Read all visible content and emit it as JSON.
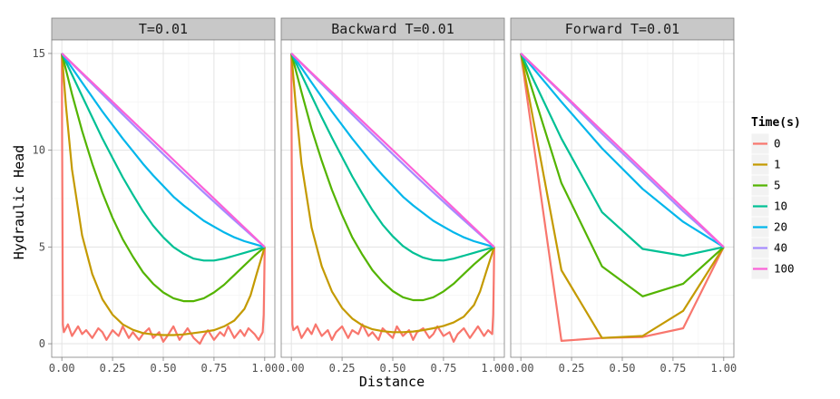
{
  "chart_data": {
    "type": "line",
    "facets": [
      "T=0.01",
      "Backward T=0.01",
      "Forward T=0.01"
    ],
    "xlabel": "Distance",
    "ylabel": "Hydraulic Head",
    "xlim": [
      -0.05,
      1.05
    ],
    "ylim": [
      -0.7,
      15.7
    ],
    "x_ticks": [
      0,
      0.25,
      0.5,
      0.75,
      1
    ],
    "x_tick_labels": [
      "0.00",
      "0.25",
      "0.50",
      "0.75",
      "1.00"
    ],
    "y_ticks": [
      0,
      5,
      10,
      15
    ],
    "y_tick_labels": [
      "0",
      "5",
      "10",
      "15"
    ],
    "grid": true,
    "legend": {
      "title": "Time(s)",
      "position": "right",
      "entries": [
        "0",
        "1",
        "5",
        "10",
        "20",
        "40",
        "100"
      ],
      "colors": [
        "#F8766D",
        "#C49A00",
        "#53B400",
        "#00C094",
        "#00B6EB",
        "#A58AFF",
        "#FB61D7"
      ]
    },
    "panels": [
      {
        "facet": "T=0.01",
        "series": [
          {
            "time": "0",
            "x": [
              0,
              0.001,
              0.003,
              0.005,
              0.01,
              0.03,
              0.05,
              0.08,
              0.1,
              0.12,
              0.15,
              0.18,
              0.2,
              0.22,
              0.25,
              0.28,
              0.3,
              0.33,
              0.35,
              0.38,
              0.4,
              0.43,
              0.45,
              0.48,
              0.5,
              0.52,
              0.55,
              0.58,
              0.6,
              0.62,
              0.65,
              0.68,
              0.7,
              0.72,
              0.75,
              0.78,
              0.8,
              0.82,
              0.85,
              0.88,
              0.9,
              0.92,
              0.95,
              0.97,
              0.99,
              0.995,
              0.998,
              1.0
            ],
            "y": [
              15,
              11.5,
              6,
              1,
              0.6,
              1.0,
              0.4,
              0.9,
              0.5,
              0.7,
              0.3,
              0.8,
              0.6,
              0.2,
              0.7,
              0.4,
              0.9,
              0.3,
              0.6,
              0.2,
              0.5,
              0.8,
              0.3,
              0.6,
              0.1,
              0.4,
              0.9,
              0.2,
              0.5,
              0.8,
              0.3,
              0.0,
              0.4,
              0.7,
              0.2,
              0.6,
              0.4,
              0.9,
              0.3,
              0.7,
              0.4,
              0.8,
              0.5,
              0.2,
              0.6,
              1.5,
              3.5,
              5
            ]
          },
          {
            "time": "1",
            "x": [
              0,
              0.02,
              0.05,
              0.1,
              0.15,
              0.2,
              0.25,
              0.3,
              0.35,
              0.4,
              0.45,
              0.5,
              0.55,
              0.6,
              0.65,
              0.7,
              0.75,
              0.8,
              0.85,
              0.9,
              0.93,
              0.96,
              1.0
            ],
            "y": [
              15,
              12.3,
              9.0,
              5.6,
              3.6,
              2.3,
              1.5,
              1.0,
              0.72,
              0.55,
              0.48,
              0.45,
              0.45,
              0.48,
              0.55,
              0.62,
              0.7,
              0.9,
              1.2,
              1.8,
              2.5,
              3.6,
              5
            ]
          },
          {
            "time": "5",
            "x": [
              0,
              0.05,
              0.1,
              0.15,
              0.2,
              0.25,
              0.3,
              0.35,
              0.4,
              0.45,
              0.5,
              0.55,
              0.6,
              0.65,
              0.7,
              0.75,
              0.8,
              0.85,
              0.9,
              0.95,
              1.0
            ],
            "y": [
              15,
              12.9,
              11.0,
              9.3,
              7.8,
              6.5,
              5.4,
              4.5,
              3.7,
              3.1,
              2.65,
              2.35,
              2.2,
              2.2,
              2.35,
              2.65,
              3.05,
              3.55,
              4.05,
              4.55,
              5
            ]
          },
          {
            "time": "10",
            "x": [
              0,
              0.05,
              0.1,
              0.15,
              0.2,
              0.25,
              0.3,
              0.35,
              0.4,
              0.45,
              0.5,
              0.55,
              0.6,
              0.65,
              0.7,
              0.75,
              0.8,
              0.85,
              0.9,
              0.95,
              1.0
            ],
            "y": [
              15,
              13.9,
              12.8,
              11.7,
              10.6,
              9.6,
              8.6,
              7.7,
              6.85,
              6.1,
              5.5,
              5.0,
              4.65,
              4.4,
              4.3,
              4.3,
              4.4,
              4.55,
              4.7,
              4.85,
              5
            ]
          },
          {
            "time": "20",
            "x": [
              0,
              0.05,
              0.1,
              0.15,
              0.2,
              0.25,
              0.3,
              0.35,
              0.4,
              0.45,
              0.5,
              0.55,
              0.6,
              0.65,
              0.7,
              0.75,
              0.8,
              0.85,
              0.9,
              0.95,
              1.0
            ],
            "y": [
              15,
              14.25,
              13.5,
              12.75,
              12.0,
              11.3,
              10.6,
              9.95,
              9.3,
              8.7,
              8.15,
              7.6,
              7.15,
              6.75,
              6.35,
              6.05,
              5.75,
              5.5,
              5.3,
              5.15,
              5
            ]
          },
          {
            "time": "40",
            "x": [
              0,
              0.1,
              0.2,
              0.3,
              0.4,
              0.5,
              0.6,
              0.7,
              0.8,
              0.9,
              1.0
            ],
            "y": [
              15,
              13.95,
              12.9,
              11.85,
              10.82,
              9.8,
              8.8,
              7.82,
              6.86,
              5.92,
              5
            ]
          },
          {
            "time": "100",
            "x": [
              0,
              0.1,
              0.2,
              0.3,
              0.4,
              0.5,
              0.6,
              0.7,
              0.8,
              0.9,
              1.0
            ],
            "y": [
              15,
              14.0,
              13.0,
              12.0,
              11.0,
              10.0,
              9.0,
              8.0,
              7.0,
              6.0,
              5
            ]
          }
        ]
      },
      {
        "facet": "Backward T=0.01",
        "series": [
          {
            "time": "0",
            "x": [
              0,
              0.001,
              0.003,
              0.005,
              0.01,
              0.03,
              0.05,
              0.08,
              0.1,
              0.12,
              0.15,
              0.18,
              0.2,
              0.22,
              0.25,
              0.28,
              0.3,
              0.33,
              0.35,
              0.38,
              0.4,
              0.43,
              0.45,
              0.48,
              0.5,
              0.52,
              0.55,
              0.58,
              0.6,
              0.62,
              0.65,
              0.68,
              0.7,
              0.72,
              0.75,
              0.78,
              0.8,
              0.82,
              0.85,
              0.88,
              0.9,
              0.92,
              0.95,
              0.97,
              0.99,
              0.995,
              0.998,
              1.0
            ],
            "y": [
              15,
              11.5,
              6,
              1,
              0.7,
              0.9,
              0.3,
              0.8,
              0.5,
              1.0,
              0.4,
              0.7,
              0.2,
              0.6,
              0.9,
              0.3,
              0.7,
              0.5,
              1.0,
              0.4,
              0.6,
              0.2,
              0.8,
              0.5,
              0.3,
              0.9,
              0.4,
              0.7,
              0.2,
              0.6,
              0.8,
              0.3,
              0.5,
              0.9,
              0.4,
              0.6,
              0.1,
              0.5,
              0.8,
              0.3,
              0.6,
              0.9,
              0.4,
              0.7,
              0.5,
              1.5,
              3.5,
              5
            ]
          },
          {
            "time": "1",
            "x": [
              0,
              0.02,
              0.05,
              0.1,
              0.15,
              0.2,
              0.25,
              0.3,
              0.35,
              0.4,
              0.45,
              0.5,
              0.55,
              0.6,
              0.65,
              0.7,
              0.75,
              0.8,
              0.85,
              0.9,
              0.93,
              0.96,
              1.0
            ],
            "y": [
              15,
              12.5,
              9.3,
              6.0,
              4.0,
              2.7,
              1.85,
              1.3,
              0.95,
              0.75,
              0.65,
              0.6,
              0.6,
              0.63,
              0.7,
              0.8,
              0.92,
              1.1,
              1.4,
              2.0,
              2.7,
              3.7,
              5
            ]
          },
          {
            "time": "5",
            "x": [
              0,
              0.05,
              0.1,
              0.15,
              0.2,
              0.25,
              0.3,
              0.35,
              0.4,
              0.45,
              0.5,
              0.55,
              0.6,
              0.65,
              0.7,
              0.75,
              0.8,
              0.85,
              0.9,
              0.95,
              1.0
            ],
            "y": [
              15,
              13.0,
              11.1,
              9.45,
              7.95,
              6.65,
              5.5,
              4.6,
              3.8,
              3.2,
              2.72,
              2.4,
              2.25,
              2.25,
              2.4,
              2.7,
              3.1,
              3.6,
              4.1,
              4.55,
              5
            ]
          },
          {
            "time": "10",
            "x": [
              0,
              0.05,
              0.1,
              0.15,
              0.2,
              0.25,
              0.3,
              0.35,
              0.4,
              0.45,
              0.5,
              0.55,
              0.6,
              0.65,
              0.7,
              0.75,
              0.8,
              0.85,
              0.9,
              0.95,
              1.0
            ],
            "y": [
              15,
              13.9,
              12.8,
              11.7,
              10.65,
              9.65,
              8.65,
              7.75,
              6.9,
              6.15,
              5.55,
              5.05,
              4.7,
              4.45,
              4.32,
              4.3,
              4.4,
              4.55,
              4.7,
              4.85,
              5
            ]
          },
          {
            "time": "20",
            "x": [
              0,
              0.05,
              0.1,
              0.15,
              0.2,
              0.25,
              0.3,
              0.35,
              0.4,
              0.45,
              0.5,
              0.55,
              0.6,
              0.65,
              0.7,
              0.75,
              0.8,
              0.85,
              0.9,
              0.95,
              1.0
            ],
            "y": [
              15,
              14.25,
              13.5,
              12.75,
              12.0,
              11.3,
              10.6,
              9.95,
              9.3,
              8.7,
              8.15,
              7.6,
              7.15,
              6.75,
              6.35,
              6.05,
              5.75,
              5.5,
              5.3,
              5.15,
              5
            ]
          },
          {
            "time": "40",
            "x": [
              0,
              0.1,
              0.2,
              0.3,
              0.4,
              0.5,
              0.6,
              0.7,
              0.8,
              0.9,
              1.0
            ],
            "y": [
              15,
              13.95,
              12.9,
              11.85,
              10.82,
              9.8,
              8.8,
              7.82,
              6.86,
              5.92,
              5
            ]
          },
          {
            "time": "100",
            "x": [
              0,
              0.1,
              0.2,
              0.3,
              0.4,
              0.5,
              0.6,
              0.7,
              0.8,
              0.9,
              1.0
            ],
            "y": [
              15,
              14.0,
              13.0,
              12.0,
              11.0,
              10.0,
              9.0,
              8.0,
              7.0,
              6.0,
              5
            ]
          }
        ]
      },
      {
        "facet": "Forward T=0.01",
        "series": [
          {
            "time": "0",
            "x": [
              0,
              0.2,
              0.4,
              0.6,
              0.8,
              1.0
            ],
            "y": [
              15,
              0.15,
              0.3,
              0.35,
              0.8,
              5
            ]
          },
          {
            "time": "1",
            "x": [
              0,
              0.2,
              0.4,
              0.6,
              0.8,
              1.0
            ],
            "y": [
              15,
              3.8,
              0.3,
              0.4,
              1.7,
              5
            ]
          },
          {
            "time": "5",
            "x": [
              0,
              0.2,
              0.4,
              0.6,
              0.8,
              1.0
            ],
            "y": [
              15,
              8.3,
              4.0,
              2.45,
              3.1,
              5
            ]
          },
          {
            "time": "10",
            "x": [
              0,
              0.2,
              0.4,
              0.6,
              0.8,
              1.0
            ],
            "y": [
              15,
              10.6,
              6.8,
              4.9,
              4.55,
              5
            ]
          },
          {
            "time": "20",
            "x": [
              0,
              0.2,
              0.4,
              0.6,
              0.8,
              1.0
            ],
            "y": [
              15,
              12.5,
              10.1,
              8.0,
              6.3,
              5
            ]
          },
          {
            "time": "40",
            "x": [
              0,
              0.2,
              0.4,
              0.6,
              0.8,
              1.0
            ],
            "y": [
              15,
              12.95,
              10.85,
              8.85,
              6.85,
              5
            ]
          },
          {
            "time": "100",
            "x": [
              0,
              0.2,
              0.4,
              0.6,
              0.8,
              1.0
            ],
            "y": [
              15,
              13.0,
              11.0,
              9.0,
              7.0,
              5
            ]
          }
        ]
      }
    ]
  }
}
